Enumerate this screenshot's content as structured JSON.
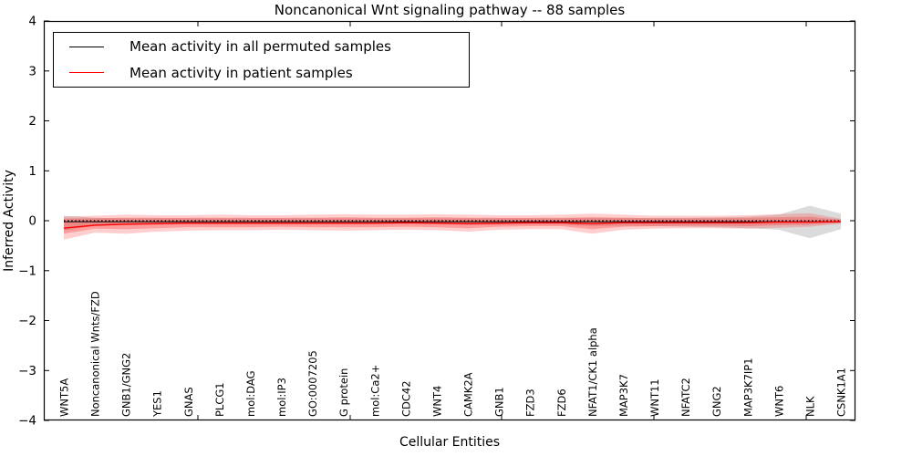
{
  "figure": {
    "title": "Noncanonical Wnt signaling pathway -- 88 samples",
    "xlabel": "Cellular Entities",
    "ylabel": "Inferred Activity"
  },
  "chart_data": {
    "type": "line",
    "title": "Noncanonical Wnt signaling pathway -- 88 samples",
    "xlabel": "Cellular Entities",
    "ylabel": "Inferred Activity",
    "ylim": [
      -4,
      4
    ],
    "yticks": [
      -4,
      -3,
      -2,
      -1,
      0,
      1,
      2,
      3,
      4
    ],
    "ytick_labels": [
      "−4",
      "−3",
      "−2",
      "−1",
      "0",
      "1",
      "2",
      "3",
      "4"
    ],
    "grid": false,
    "legend_position": "upper left",
    "zero_line": {
      "y": 0,
      "style": "dotted",
      "color": "#000000"
    },
    "categories": [
      "WNT5A",
      "Noncanonical Wnts/FZD",
      "GNB1/GNG2",
      "YES1",
      "GNAS",
      "PLCG1",
      "mol:DAG",
      "mol:IP3",
      "GO:0007205",
      "G protein",
      "mol:Ca2+",
      "CDC42",
      "WNT4",
      "CAMK2A",
      "GNB1",
      "FZD3",
      "FZD6",
      "NFAT1/CK1 alpha",
      "MAP3K7",
      "WNT11",
      "NFATC2",
      "GNG2",
      "MAP3K7IP1",
      "WNT6",
      "NLK",
      "CSNK1A1"
    ],
    "series": [
      {
        "name": "Mean activity in all permuted samples",
        "color": "#000000",
        "band_color": "rgba(125,125,125,0.28)",
        "values": [
          -0.02,
          -0.02,
          -0.02,
          -0.02,
          -0.02,
          -0.02,
          -0.02,
          -0.02,
          -0.02,
          -0.02,
          -0.02,
          -0.02,
          -0.02,
          -0.02,
          -0.02,
          -0.02,
          -0.02,
          -0.02,
          -0.02,
          -0.02,
          -0.02,
          -0.02,
          -0.02,
          -0.02,
          -0.02,
          -0.02
        ],
        "band_upper": [
          0.1,
          0.06,
          0.05,
          0.05,
          0.05,
          0.05,
          0.05,
          0.05,
          0.05,
          0.05,
          0.05,
          0.05,
          0.05,
          0.05,
          0.05,
          0.05,
          0.05,
          0.06,
          0.06,
          0.06,
          0.06,
          0.07,
          0.08,
          0.12,
          0.3,
          0.14
        ],
        "band_lower": [
          -0.2,
          -0.1,
          -0.08,
          -0.07,
          -0.07,
          -0.07,
          -0.07,
          -0.07,
          -0.07,
          -0.07,
          -0.07,
          -0.07,
          -0.07,
          -0.08,
          -0.08,
          -0.08,
          -0.08,
          -0.11,
          -0.1,
          -0.11,
          -0.12,
          -0.13,
          -0.15,
          -0.18,
          -0.35,
          -0.17
        ]
      },
      {
        "name": "Mean activity in patient samples",
        "color": "#ff0000",
        "band_color": "rgba(255,30,30,0.22)",
        "band_inner_color": "rgba(255,30,30,0.28)",
        "values": [
          -0.15,
          -0.09,
          -0.07,
          -0.06,
          -0.05,
          -0.05,
          -0.05,
          -0.05,
          -0.05,
          -0.05,
          -0.05,
          -0.04,
          -0.05,
          -0.06,
          -0.05,
          -0.04,
          -0.04,
          -0.06,
          -0.04,
          -0.04,
          -0.04,
          -0.04,
          -0.04,
          -0.03,
          -0.03,
          -0.02
        ],
        "band_upper": [
          0.08,
          0.1,
          0.12,
          0.11,
          0.11,
          0.12,
          0.11,
          0.11,
          0.12,
          0.13,
          0.12,
          0.12,
          0.13,
          0.12,
          0.11,
          0.11,
          0.12,
          0.14,
          0.12,
          0.1,
          0.1,
          0.1,
          0.11,
          0.13,
          0.15,
          0.04
        ],
        "band_lower": [
          -0.38,
          -0.24,
          -0.26,
          -0.22,
          -0.2,
          -0.19,
          -0.19,
          -0.18,
          -0.19,
          -0.2,
          -0.19,
          -0.18,
          -0.19,
          -0.22,
          -0.18,
          -0.17,
          -0.17,
          -0.26,
          -0.18,
          -0.16,
          -0.15,
          -0.15,
          -0.16,
          -0.14,
          -0.12,
          -0.06
        ],
        "band_inner_upper": [
          0.04,
          0.05,
          0.06,
          0.06,
          0.06,
          0.06,
          0.06,
          0.06,
          0.06,
          0.07,
          0.06,
          0.06,
          0.07,
          0.06,
          0.06,
          0.06,
          0.06,
          0.07,
          0.06,
          0.05,
          0.05,
          0.05,
          0.06,
          0.07,
          0.08,
          0.02
        ],
        "band_inner_lower": [
          -0.26,
          -0.16,
          -0.17,
          -0.15,
          -0.13,
          -0.13,
          -0.13,
          -0.12,
          -0.13,
          -0.13,
          -0.13,
          -0.12,
          -0.13,
          -0.15,
          -0.12,
          -0.11,
          -0.11,
          -0.17,
          -0.12,
          -0.11,
          -0.1,
          -0.1,
          -0.11,
          -0.09,
          -0.08,
          -0.04
        ]
      }
    ]
  }
}
